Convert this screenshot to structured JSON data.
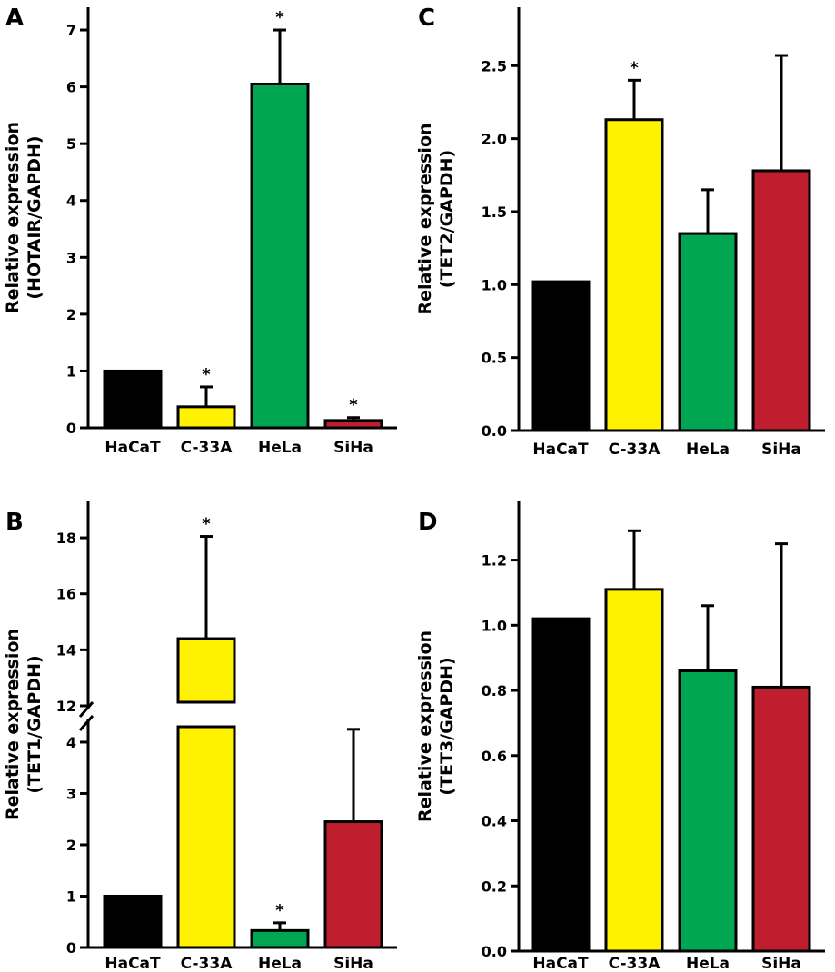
{
  "colors": {
    "HaCaT": "#000000",
    "C-33A": "#fff200",
    "HeLa": "#00a651",
    "SiHa": "#be1e2d"
  },
  "chart_data": [
    {
      "panel": "A",
      "type": "bar",
      "categories": [
        "HaCaT",
        "C-33A",
        "HeLa",
        "SiHa"
      ],
      "values": [
        1.0,
        0.37,
        6.05,
        0.13
      ],
      "errors": [
        0,
        0.35,
        0.95,
        0.05
      ],
      "significant": [
        "",
        "*",
        "*",
        "*"
      ],
      "ylabel_line1": "Relative expression",
      "ylabel_line2": "(HOTAIR/GAPDH)",
      "ylim": [
        0,
        7.4
      ],
      "yticks": [
        "0",
        "1",
        "2",
        "3",
        "4",
        "5",
        "6",
        "7"
      ]
    },
    {
      "panel": "B",
      "type": "bar",
      "categories": [
        "HaCaT",
        "C-33A",
        "HeLa",
        "SiHa"
      ],
      "values": [
        1.0,
        14.4,
        0.33,
        2.45
      ],
      "errors": [
        0,
        3.65,
        0.15,
        1.8
      ],
      "significant": [
        "",
        "*",
        "*",
        ""
      ],
      "ylabel_line1": "Relative expression",
      "ylabel_line2": "(TET1/GAPDH)",
      "broken_axis": true,
      "lower_range": [
        0,
        4.3
      ],
      "upper_range": [
        12,
        19.3
      ],
      "yticks_lower": [
        "0",
        "1",
        "2",
        "3",
        "4"
      ],
      "yticks_upper": [
        "12",
        "14",
        "16",
        "18"
      ]
    },
    {
      "panel": "C",
      "type": "bar",
      "categories": [
        "HaCaT",
        "C-33A",
        "HeLa",
        "SiHa"
      ],
      "values": [
        1.02,
        2.13,
        1.35,
        1.78
      ],
      "errors": [
        0,
        0.27,
        0.3,
        0.79
      ],
      "significant": [
        "",
        "*",
        "",
        ""
      ],
      "ylabel_line1": "Relative expression",
      "ylabel_line2": "(TET2/GAPDH)",
      "ylim": [
        0,
        2.9
      ],
      "yticks": [
        "0.0",
        "0.5",
        "1.0",
        "1.5",
        "2.0",
        "2.5"
      ]
    },
    {
      "panel": "D",
      "type": "bar",
      "categories": [
        "HaCaT",
        "C-33A",
        "HeLa",
        "SiHa"
      ],
      "values": [
        1.02,
        1.11,
        0.86,
        0.81
      ],
      "errors": [
        0,
        0.18,
        0.2,
        0.44
      ],
      "significant": [
        "",
        "",
        "",
        ""
      ],
      "ylabel_line1": "Relative expression",
      "ylabel_line2": "(TET3/GAPDH)",
      "ylim": [
        0,
        1.38
      ],
      "yticks": [
        "0.0",
        "0.2",
        "0.4",
        "0.6",
        "0.8",
        "1.0",
        "1.2"
      ]
    }
  ]
}
